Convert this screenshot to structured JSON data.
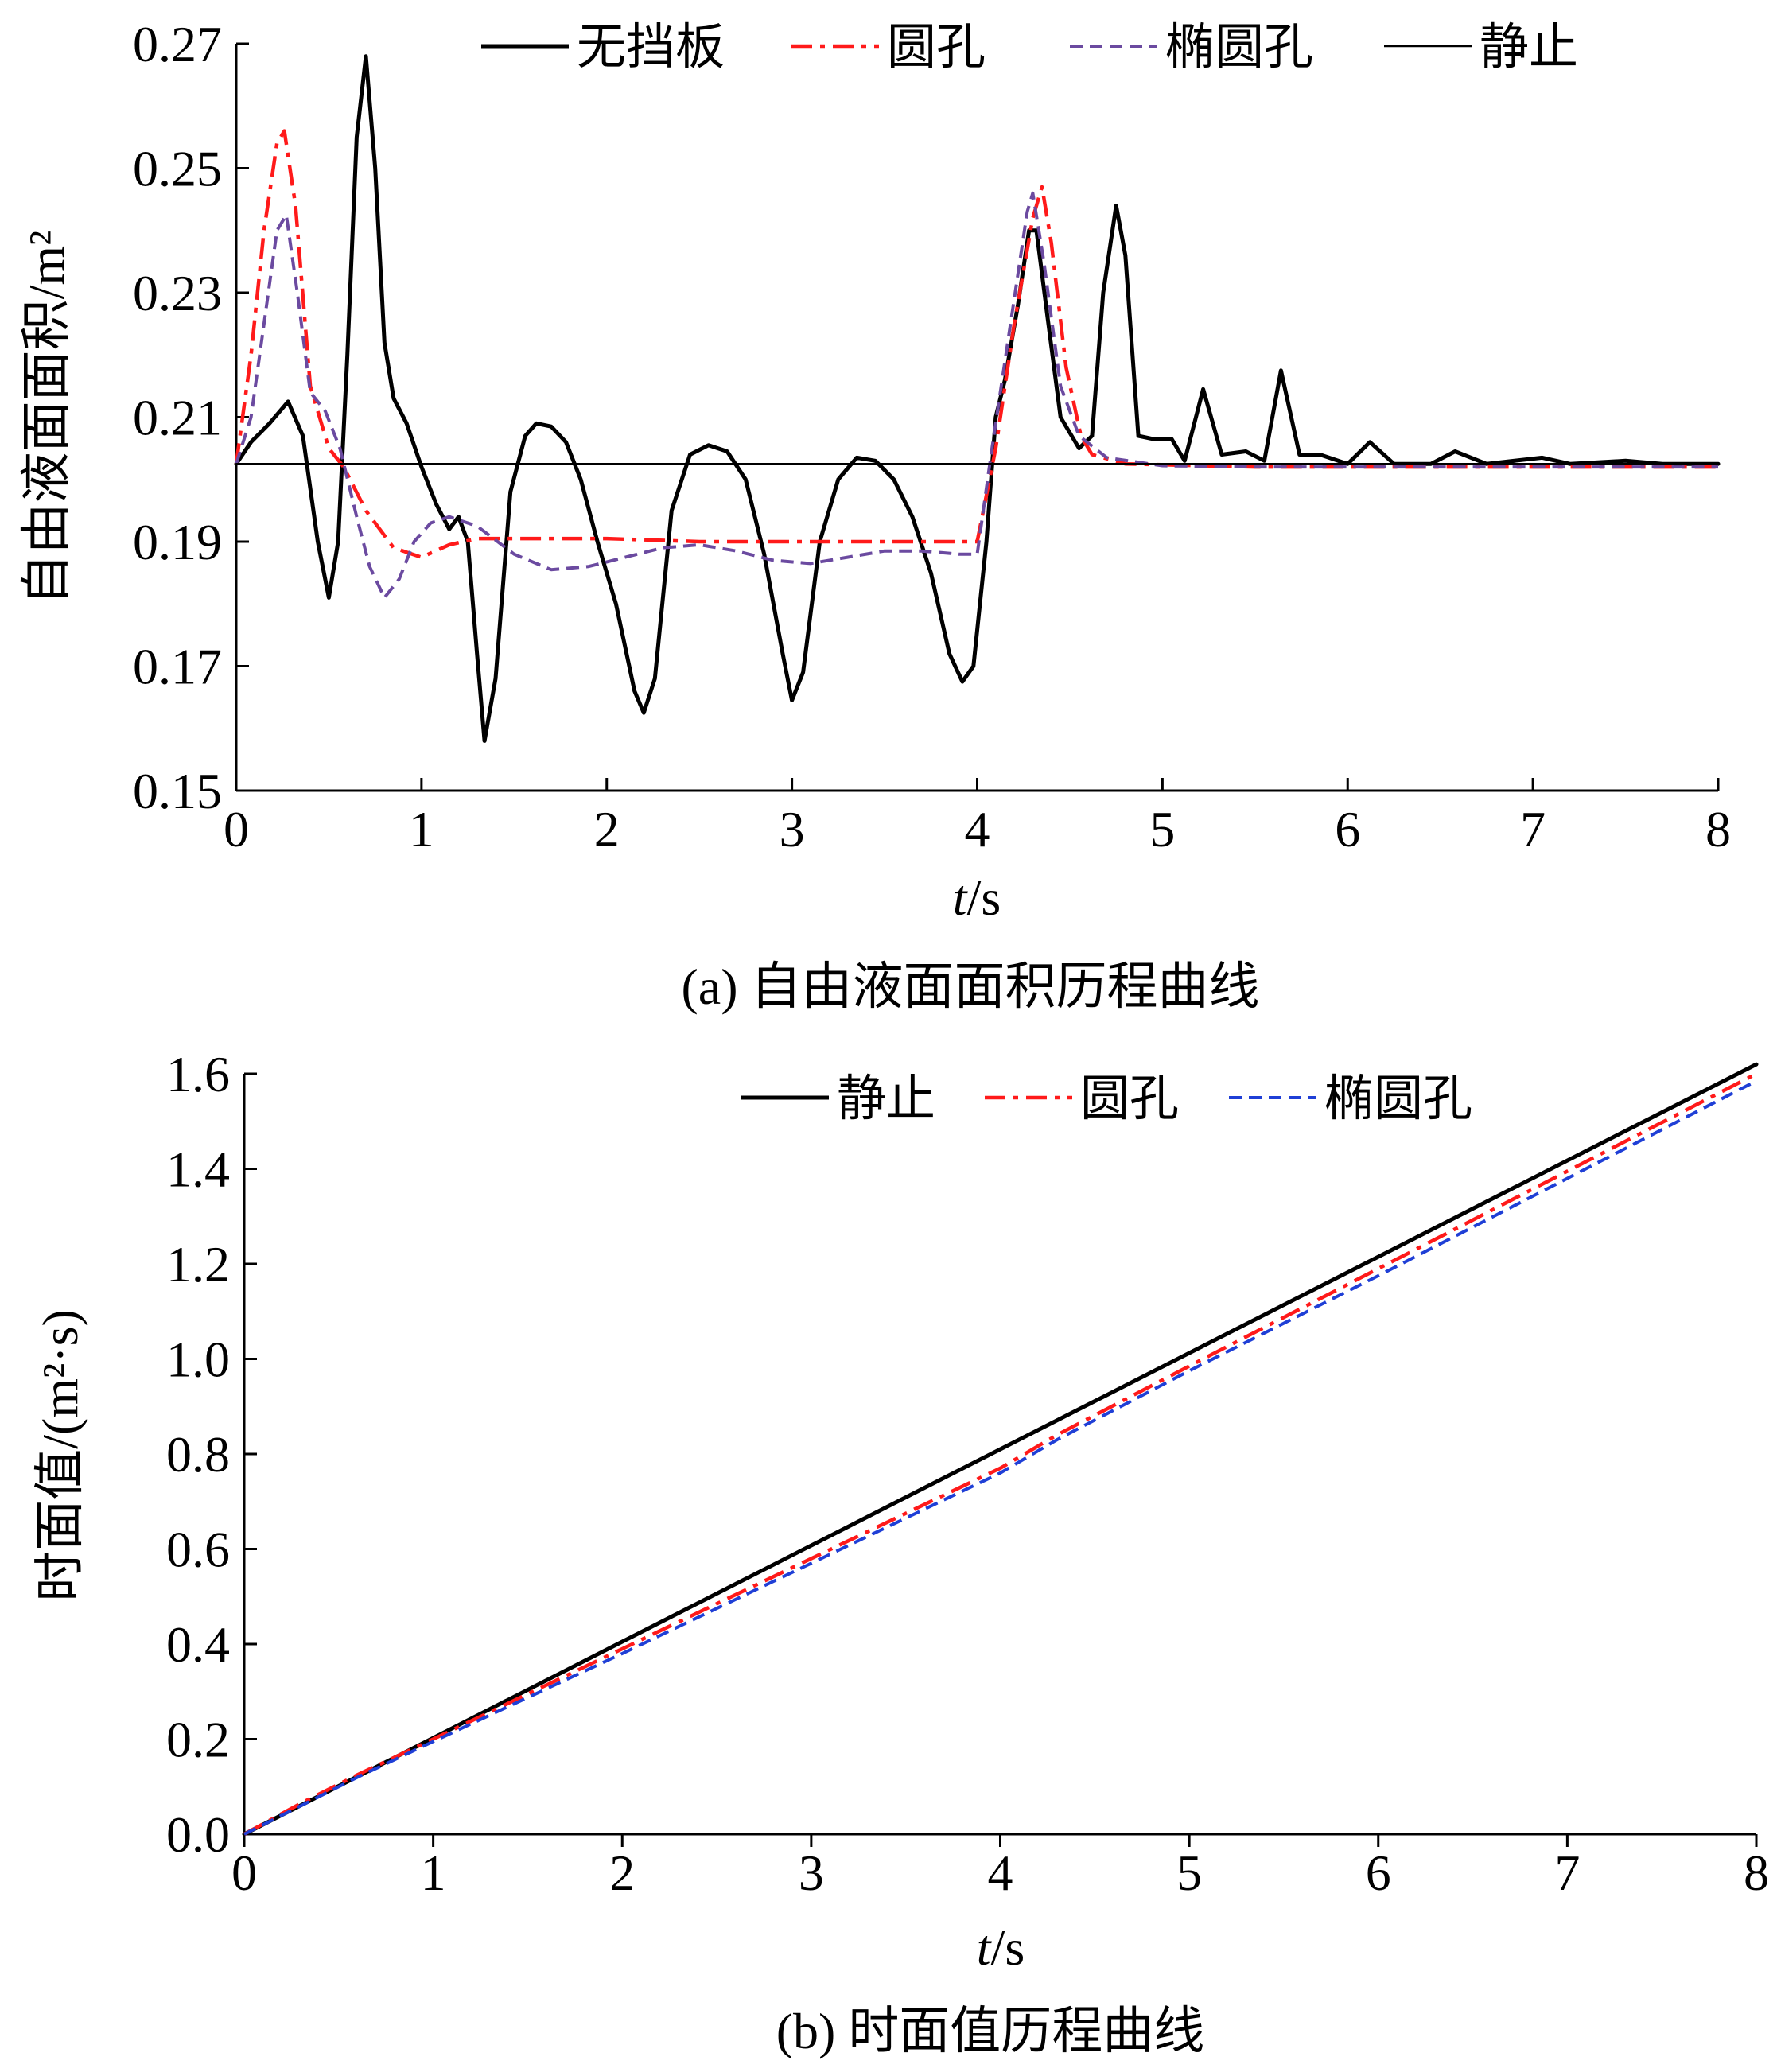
{
  "colors": {
    "black": "#000000",
    "red": "#ff1a1a",
    "purple": "#6b4aa0",
    "blue": "#1f3fd6"
  },
  "chart_data": [
    {
      "id": "a",
      "type": "line",
      "caption": "(a) 自由液面面积历程曲线",
      "xlabel": "t/s",
      "ylabel": "自由液面面积/m²",
      "xlim": [
        0,
        8
      ],
      "ylim": [
        0.15,
        0.27
      ],
      "xticks": [
        "0",
        "1",
        "2",
        "3",
        "4",
        "5",
        "6",
        "7",
        "8"
      ],
      "yticks": [
        "0.15",
        "0.17",
        "0.19",
        "0.21",
        "0.23",
        "0.25",
        "0.27"
      ],
      "legend_position": "top",
      "grid": false,
      "series": [
        {
          "name": "无挡板",
          "color": "#000000",
          "style": "solid-thick",
          "points": [
            [
              0,
              0.2025
            ],
            [
              0.08,
              0.206
            ],
            [
              0.18,
              0.209
            ],
            [
              0.28,
              0.2125
            ],
            [
              0.36,
              0.207
            ],
            [
              0.44,
              0.19
            ],
            [
              0.5,
              0.181
            ],
            [
              0.55,
              0.19
            ],
            [
              0.6,
              0.22
            ],
            [
              0.65,
              0.255
            ],
            [
              0.7,
              0.268
            ],
            [
              0.75,
              0.25
            ],
            [
              0.8,
              0.222
            ],
            [
              0.85,
              0.213
            ],
            [
              0.92,
              0.209
            ],
            [
              1.0,
              0.202
            ],
            [
              1.08,
              0.196
            ],
            [
              1.15,
              0.192
            ],
            [
              1.2,
              0.194
            ],
            [
              1.25,
              0.19
            ],
            [
              1.3,
              0.172
            ],
            [
              1.34,
              0.158
            ],
            [
              1.4,
              0.168
            ],
            [
              1.48,
              0.198
            ],
            [
              1.56,
              0.207
            ],
            [
              1.62,
              0.209
            ],
            [
              1.7,
              0.2085
            ],
            [
              1.78,
              0.206
            ],
            [
              1.86,
              0.2
            ],
            [
              1.95,
              0.19
            ],
            [
              2.05,
              0.18
            ],
            [
              2.15,
              0.166
            ],
            [
              2.2,
              0.1625
            ],
            [
              2.26,
              0.168
            ],
            [
              2.35,
              0.195
            ],
            [
              2.45,
              0.204
            ],
            [
              2.55,
              0.2055
            ],
            [
              2.65,
              0.2045
            ],
            [
              2.75,
              0.2
            ],
            [
              2.85,
              0.188
            ],
            [
              2.95,
              0.172
            ],
            [
              3.0,
              0.1645
            ],
            [
              3.06,
              0.169
            ],
            [
              3.15,
              0.19
            ],
            [
              3.25,
              0.2
            ],
            [
              3.35,
              0.2035
            ],
            [
              3.45,
              0.203
            ],
            [
              3.55,
              0.2
            ],
            [
              3.65,
              0.194
            ],
            [
              3.75,
              0.185
            ],
            [
              3.85,
              0.172
            ],
            [
              3.92,
              0.1675
            ],
            [
              3.98,
              0.17
            ],
            [
              4.05,
              0.19
            ],
            [
              4.1,
              0.21
            ],
            [
              4.15,
              0.216
            ],
            [
              4.22,
              0.228
            ],
            [
              4.28,
              0.24
            ],
            [
              4.32,
              0.24
            ],
            [
              4.38,
              0.226
            ],
            [
              4.45,
              0.21
            ],
            [
              4.55,
              0.205
            ],
            [
              4.62,
              0.207
            ],
            [
              4.68,
              0.23
            ],
            [
              4.75,
              0.244
            ],
            [
              4.8,
              0.236
            ],
            [
              4.87,
              0.207
            ],
            [
              4.95,
              0.2065
            ],
            [
              5.05,
              0.2065
            ],
            [
              5.12,
              0.203
            ],
            [
              5.22,
              0.2145
            ],
            [
              5.32,
              0.204
            ],
            [
              5.45,
              0.2045
            ],
            [
              5.55,
              0.203
            ],
            [
              5.64,
              0.2175
            ],
            [
              5.74,
              0.204
            ],
            [
              5.85,
              0.204
            ],
            [
              6.0,
              0.2025
            ],
            [
              6.12,
              0.206
            ],
            [
              6.25,
              0.2025
            ],
            [
              6.45,
              0.2025
            ],
            [
              6.58,
              0.2045
            ],
            [
              6.75,
              0.2025
            ],
            [
              7.05,
              0.2035
            ],
            [
              7.2,
              0.2025
            ],
            [
              7.5,
              0.203
            ],
            [
              7.7,
              0.2025
            ],
            [
              7.95,
              0.2025
            ],
            [
              8.0,
              0.2025
            ]
          ]
        },
        {
          "name": "圆孔",
          "color": "#ff1a1a",
          "style": "dash-dot",
          "points": [
            [
              0,
              0.2025
            ],
            [
              0.08,
              0.22
            ],
            [
              0.15,
              0.24
            ],
            [
              0.22,
              0.254
            ],
            [
              0.26,
              0.256
            ],
            [
              0.32,
              0.244
            ],
            [
              0.4,
              0.215
            ],
            [
              0.5,
              0.205
            ],
            [
              0.58,
              0.202
            ],
            [
              0.7,
              0.195
            ],
            [
              0.85,
              0.189
            ],
            [
              1.0,
              0.1875
            ],
            [
              1.15,
              0.1895
            ],
            [
              1.3,
              0.1905
            ],
            [
              1.5,
              0.1905
            ],
            [
              2.0,
              0.1905
            ],
            [
              2.5,
              0.19
            ],
            [
              3.0,
              0.19
            ],
            [
              3.5,
              0.19
            ],
            [
              4.0,
              0.19
            ],
            [
              4.1,
              0.205
            ],
            [
              4.2,
              0.225
            ],
            [
              4.3,
              0.242
            ],
            [
              4.35,
              0.247
            ],
            [
              4.4,
              0.238
            ],
            [
              4.48,
              0.218
            ],
            [
              4.56,
              0.207
            ],
            [
              4.62,
              0.204
            ],
            [
              4.8,
              0.2025
            ],
            [
              5.5,
              0.202
            ],
            [
              8.0,
              0.202
            ]
          ]
        },
        {
          "name": "椭圆孔",
          "color": "#6b4aa0",
          "style": "dashed",
          "points": [
            [
              0,
              0.2025
            ],
            [
              0.08,
              0.21
            ],
            [
              0.15,
              0.225
            ],
            [
              0.22,
              0.24
            ],
            [
              0.27,
              0.2425
            ],
            [
              0.33,
              0.23
            ],
            [
              0.4,
              0.214
            ],
            [
              0.48,
              0.211
            ],
            [
              0.56,
              0.205
            ],
            [
              0.65,
              0.194
            ],
            [
              0.72,
              0.186
            ],
            [
              0.8,
              0.181
            ],
            [
              0.88,
              0.184
            ],
            [
              0.96,
              0.19
            ],
            [
              1.05,
              0.193
            ],
            [
              1.15,
              0.194
            ],
            [
              1.3,
              0.1925
            ],
            [
              1.5,
              0.188
            ],
            [
              1.7,
              0.1855
            ],
            [
              1.9,
              0.186
            ],
            [
              2.1,
              0.1875
            ],
            [
              2.3,
              0.189
            ],
            [
              2.5,
              0.1895
            ],
            [
              2.7,
              0.1885
            ],
            [
              2.9,
              0.187
            ],
            [
              3.1,
              0.1865
            ],
            [
              3.3,
              0.1875
            ],
            [
              3.5,
              0.1885
            ],
            [
              3.7,
              0.1885
            ],
            [
              3.9,
              0.188
            ],
            [
              4.0,
              0.188
            ],
            [
              4.08,
              0.205
            ],
            [
              4.18,
              0.225
            ],
            [
              4.27,
              0.243
            ],
            [
              4.3,
              0.246
            ],
            [
              4.36,
              0.235
            ],
            [
              4.45,
              0.215
            ],
            [
              4.55,
              0.207
            ],
            [
              4.7,
              0.2035
            ],
            [
              5.0,
              0.2022
            ],
            [
              5.5,
              0.202
            ],
            [
              8.0,
              0.202
            ]
          ]
        },
        {
          "name": "静止",
          "color": "#000000",
          "style": "solid-thin",
          "points": [
            [
              0,
              0.2025
            ],
            [
              8.0,
              0.2025
            ]
          ]
        }
      ]
    },
    {
      "id": "b",
      "type": "line",
      "caption": "(b) 时面值历程曲线",
      "xlabel": "t/s",
      "ylabel": "时面值/(m²·s)",
      "xlim": [
        0,
        8
      ],
      "ylim": [
        0.0,
        1.6
      ],
      "xticks": [
        "0",
        "1",
        "2",
        "3",
        "4",
        "5",
        "6",
        "7",
        "8"
      ],
      "yticks": [
        "0.0",
        "0.2",
        "0.4",
        "0.6",
        "0.8",
        "1.0",
        "1.2",
        "1.4",
        "1.6"
      ],
      "legend_position": "top",
      "grid": false,
      "series": [
        {
          "name": "静止",
          "color": "#000000",
          "style": "solid-thick",
          "points": [
            [
              0,
              0
            ],
            [
              8,
              1.62
            ]
          ]
        },
        {
          "name": "圆孔",
          "color": "#ff1a1a",
          "style": "dash-dot",
          "points": [
            [
              0,
              0
            ],
            [
              0.3,
              0.065
            ],
            [
              0.6,
              0.125
            ],
            [
              1.0,
              0.2
            ],
            [
              2.0,
              0.39
            ],
            [
              3.0,
              0.58
            ],
            [
              4.0,
              0.77
            ],
            [
              4.3,
              0.84
            ],
            [
              5.0,
              0.985
            ],
            [
              6.0,
              1.19
            ],
            [
              7.0,
              1.395
            ],
            [
              8.0,
              1.6
            ]
          ]
        },
        {
          "name": "椭圆孔",
          "color": "#1f3fd6",
          "style": "dashed",
          "points": [
            [
              0,
              0
            ],
            [
              0.3,
              0.06
            ],
            [
              0.6,
              0.12
            ],
            [
              1.0,
              0.195
            ],
            [
              2.0,
              0.38
            ],
            [
              3.0,
              0.57
            ],
            [
              4.0,
              0.76
            ],
            [
              4.3,
              0.83
            ],
            [
              5.0,
              0.975
            ],
            [
              6.0,
              1.175
            ],
            [
              7.0,
              1.38
            ],
            [
              8.0,
              1.585
            ]
          ]
        }
      ]
    }
  ]
}
